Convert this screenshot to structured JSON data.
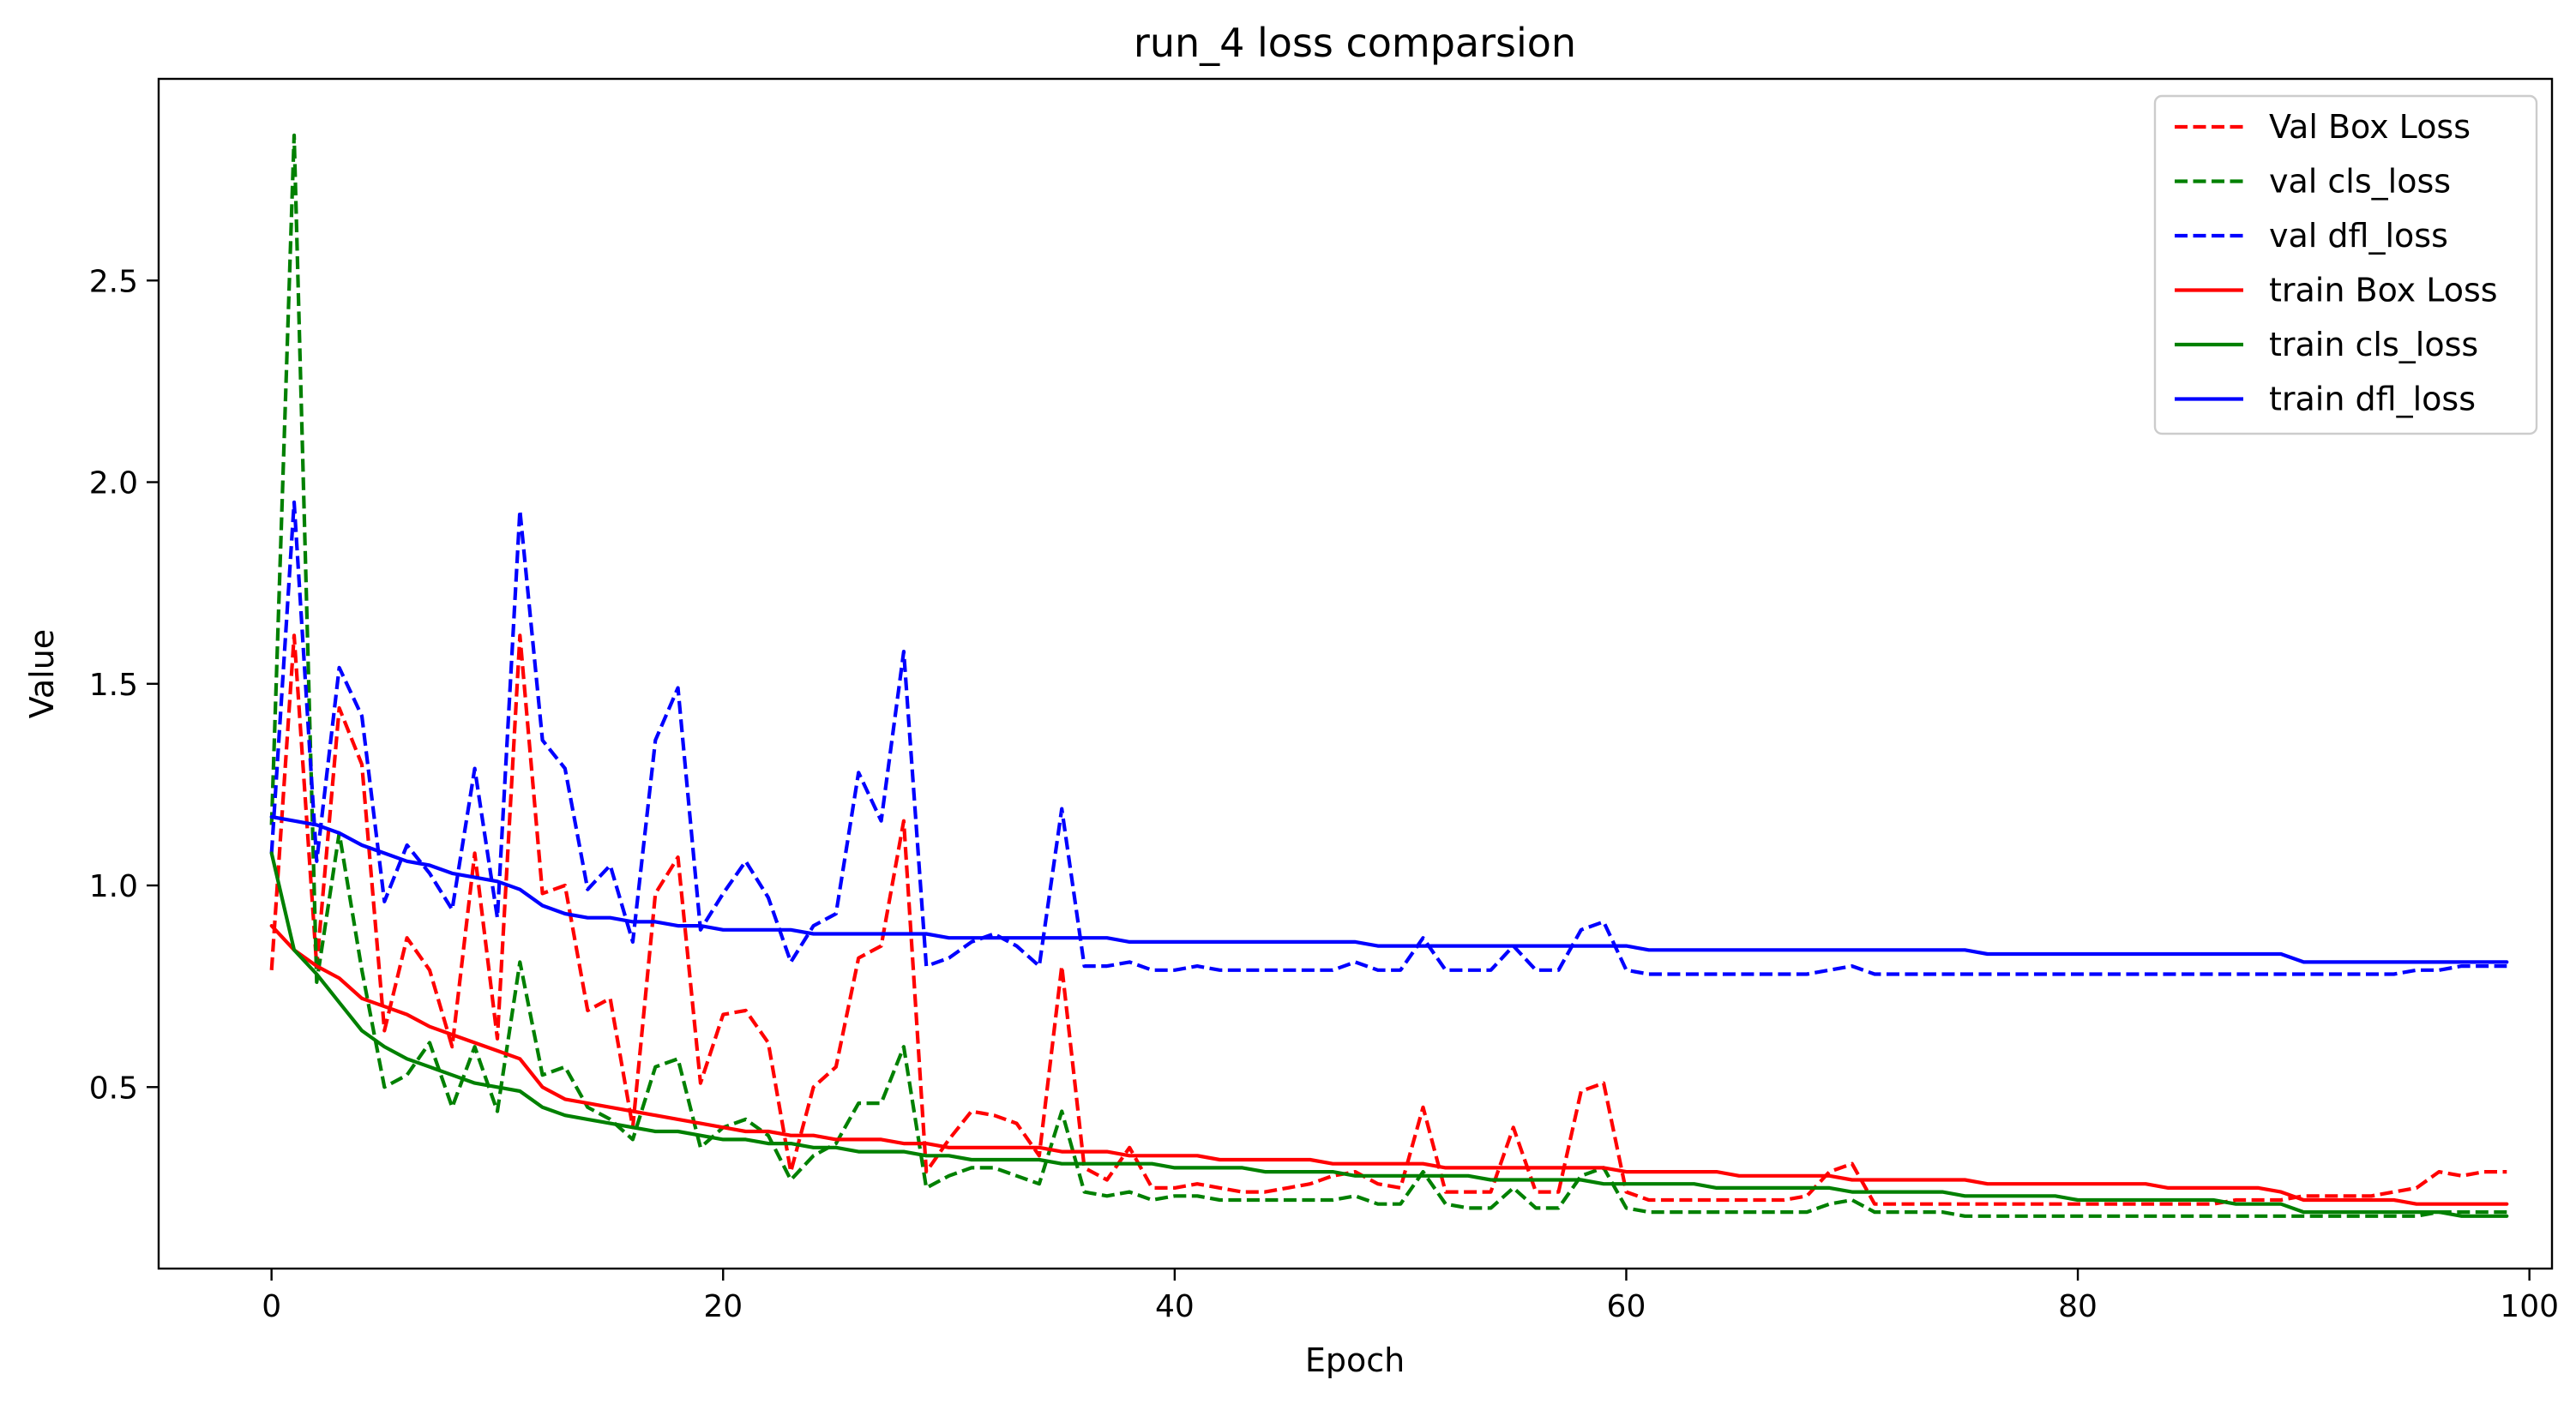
{
  "chart_data": {
    "type": "line",
    "title": "run_4 loss comparsion",
    "xlabel": "Epoch",
    "ylabel": "Value",
    "xlim": [
      -5,
      101
    ],
    "ylim": [
      0.05,
      3.0
    ],
    "xticks": [
      0,
      20,
      40,
      60,
      80,
      100
    ],
    "yticks": [
      0.5,
      1.0,
      1.5,
      2.0,
      2.5
    ],
    "xtick_labels": [
      "0",
      "20",
      "40",
      "60",
      "80",
      "100"
    ],
    "ytick_labels": [
      "0.5",
      "1.0",
      "1.5",
      "2.0",
      "2.5"
    ],
    "grid": false,
    "legend_position": "top-right",
    "x": [
      0,
      1,
      2,
      3,
      4,
      5,
      6,
      7,
      8,
      9,
      10,
      11,
      12,
      13,
      14,
      15,
      16,
      17,
      18,
      19,
      20,
      21,
      22,
      23,
      24,
      25,
      26,
      27,
      28,
      29,
      30,
      31,
      32,
      33,
      34,
      35,
      36,
      37,
      38,
      39,
      40,
      41,
      42,
      43,
      44,
      45,
      46,
      47,
      48,
      49,
      50,
      51,
      52,
      53,
      54,
      55,
      56,
      57,
      58,
      59,
      60,
      61,
      62,
      63,
      64,
      65,
      66,
      67,
      68,
      69,
      70,
      71,
      72,
      73,
      74,
      75,
      76,
      77,
      78,
      79,
      80,
      81,
      82,
      83,
      84,
      85,
      86,
      87,
      88,
      89,
      90,
      91,
      92,
      93,
      94,
      95,
      96,
      97,
      98,
      99
    ],
    "series": [
      {
        "name": "Val Box Loss",
        "color": "#ff0000",
        "style": "dashed",
        "values": [
          0.79,
          1.62,
          0.8,
          1.44,
          1.3,
          0.64,
          0.87,
          0.79,
          0.6,
          1.08,
          0.62,
          1.62,
          0.98,
          1.0,
          0.69,
          0.72,
          0.4,
          0.98,
          1.07,
          0.51,
          0.68,
          0.69,
          0.61,
          0.29,
          0.5,
          0.55,
          0.82,
          0.85,
          1.16,
          0.29,
          0.37,
          0.44,
          0.43,
          0.41,
          0.33,
          0.8,
          0.3,
          0.27,
          0.35,
          0.25,
          0.25,
          0.26,
          0.25,
          0.24,
          0.24,
          0.25,
          0.26,
          0.28,
          0.29,
          0.26,
          0.25,
          0.45,
          0.24,
          0.24,
          0.24,
          0.4,
          0.24,
          0.24,
          0.49,
          0.51,
          0.24,
          0.22,
          0.22,
          0.22,
          0.22,
          0.22,
          0.22,
          0.22,
          0.23,
          0.29,
          0.31,
          0.21,
          0.21,
          0.21,
          0.21,
          0.21,
          0.21,
          0.21,
          0.21,
          0.21,
          0.21,
          0.21,
          0.21,
          0.21,
          0.21,
          0.21,
          0.21,
          0.22,
          0.22,
          0.22,
          0.23,
          0.23,
          0.23,
          0.23,
          0.24,
          0.25,
          0.29,
          0.28,
          0.29,
          0.29
        ]
      },
      {
        "name": "val cls_loss",
        "color": "#008000",
        "style": "dashed",
        "values": [
          1.15,
          2.86,
          0.76,
          1.13,
          0.79,
          0.5,
          0.53,
          0.61,
          0.45,
          0.6,
          0.44,
          0.81,
          0.53,
          0.55,
          0.45,
          0.42,
          0.37,
          0.55,
          0.57,
          0.35,
          0.4,
          0.42,
          0.38,
          0.27,
          0.33,
          0.36,
          0.46,
          0.46,
          0.6,
          0.25,
          0.28,
          0.3,
          0.3,
          0.28,
          0.26,
          0.44,
          0.24,
          0.23,
          0.24,
          0.22,
          0.23,
          0.23,
          0.22,
          0.22,
          0.22,
          0.22,
          0.22,
          0.22,
          0.23,
          0.21,
          0.21,
          0.29,
          0.21,
          0.2,
          0.2,
          0.25,
          0.2,
          0.2,
          0.28,
          0.3,
          0.2,
          0.19,
          0.19,
          0.19,
          0.19,
          0.19,
          0.19,
          0.19,
          0.19,
          0.21,
          0.22,
          0.19,
          0.19,
          0.19,
          0.19,
          0.18,
          0.18,
          0.18,
          0.18,
          0.18,
          0.18,
          0.18,
          0.18,
          0.18,
          0.18,
          0.18,
          0.18,
          0.18,
          0.18,
          0.18,
          0.18,
          0.18,
          0.18,
          0.18,
          0.18,
          0.18,
          0.19,
          0.19,
          0.19,
          0.19
        ]
      },
      {
        "name": "val dfl_loss",
        "color": "#0000ff",
        "style": "dashed",
        "values": [
          1.08,
          1.95,
          1.06,
          1.54,
          1.42,
          0.96,
          1.1,
          1.03,
          0.94,
          1.29,
          0.92,
          1.93,
          1.36,
          1.29,
          0.99,
          1.05,
          0.86,
          1.36,
          1.49,
          0.89,
          0.98,
          1.06,
          0.97,
          0.81,
          0.9,
          0.93,
          1.28,
          1.16,
          1.58,
          0.8,
          0.82,
          0.86,
          0.88,
          0.85,
          0.8,
          1.19,
          0.8,
          0.8,
          0.81,
          0.79,
          0.79,
          0.8,
          0.79,
          0.79,
          0.79,
          0.79,
          0.79,
          0.79,
          0.81,
          0.79,
          0.79,
          0.87,
          0.79,
          0.79,
          0.79,
          0.85,
          0.79,
          0.79,
          0.89,
          0.91,
          0.79,
          0.78,
          0.78,
          0.78,
          0.78,
          0.78,
          0.78,
          0.78,
          0.78,
          0.79,
          0.8,
          0.78,
          0.78,
          0.78,
          0.78,
          0.78,
          0.78,
          0.78,
          0.78,
          0.78,
          0.78,
          0.78,
          0.78,
          0.78,
          0.78,
          0.78,
          0.78,
          0.78,
          0.78,
          0.78,
          0.78,
          0.78,
          0.78,
          0.78,
          0.78,
          0.79,
          0.79,
          0.8,
          0.8,
          0.8
        ]
      },
      {
        "name": "train Box Loss",
        "color": "#ff0000",
        "style": "solid",
        "values": [
          0.9,
          0.84,
          0.8,
          0.77,
          0.72,
          0.7,
          0.68,
          0.65,
          0.63,
          0.61,
          0.59,
          0.57,
          0.5,
          0.47,
          0.46,
          0.45,
          0.44,
          0.43,
          0.42,
          0.41,
          0.4,
          0.39,
          0.39,
          0.38,
          0.38,
          0.37,
          0.37,
          0.37,
          0.36,
          0.36,
          0.35,
          0.35,
          0.35,
          0.35,
          0.35,
          0.34,
          0.34,
          0.34,
          0.33,
          0.33,
          0.33,
          0.33,
          0.32,
          0.32,
          0.32,
          0.32,
          0.32,
          0.31,
          0.31,
          0.31,
          0.31,
          0.31,
          0.3,
          0.3,
          0.3,
          0.3,
          0.3,
          0.3,
          0.3,
          0.3,
          0.29,
          0.29,
          0.29,
          0.29,
          0.29,
          0.28,
          0.28,
          0.28,
          0.28,
          0.28,
          0.27,
          0.27,
          0.27,
          0.27,
          0.27,
          0.27,
          0.26,
          0.26,
          0.26,
          0.26,
          0.26,
          0.26,
          0.26,
          0.26,
          0.25,
          0.25,
          0.25,
          0.25,
          0.25,
          0.24,
          0.22,
          0.22,
          0.22,
          0.22,
          0.22,
          0.21,
          0.21,
          0.21,
          0.21,
          0.21
        ]
      },
      {
        "name": "train cls_loss",
        "color": "#008000",
        "style": "solid",
        "values": [
          1.08,
          0.84,
          0.78,
          0.71,
          0.64,
          0.6,
          0.57,
          0.55,
          0.53,
          0.51,
          0.5,
          0.49,
          0.45,
          0.43,
          0.42,
          0.41,
          0.4,
          0.39,
          0.39,
          0.38,
          0.37,
          0.37,
          0.36,
          0.36,
          0.35,
          0.35,
          0.34,
          0.34,
          0.34,
          0.33,
          0.33,
          0.32,
          0.32,
          0.32,
          0.32,
          0.31,
          0.31,
          0.31,
          0.31,
          0.31,
          0.3,
          0.3,
          0.3,
          0.3,
          0.29,
          0.29,
          0.29,
          0.29,
          0.28,
          0.28,
          0.28,
          0.28,
          0.28,
          0.28,
          0.27,
          0.27,
          0.27,
          0.27,
          0.27,
          0.26,
          0.26,
          0.26,
          0.26,
          0.26,
          0.25,
          0.25,
          0.25,
          0.25,
          0.25,
          0.25,
          0.24,
          0.24,
          0.24,
          0.24,
          0.24,
          0.23,
          0.23,
          0.23,
          0.23,
          0.23,
          0.22,
          0.22,
          0.22,
          0.22,
          0.22,
          0.22,
          0.22,
          0.21,
          0.21,
          0.21,
          0.19,
          0.19,
          0.19,
          0.19,
          0.19,
          0.19,
          0.19,
          0.18,
          0.18,
          0.18
        ]
      },
      {
        "name": "train dfl_loss",
        "color": "#0000ff",
        "style": "solid",
        "values": [
          1.17,
          1.16,
          1.15,
          1.13,
          1.1,
          1.08,
          1.06,
          1.05,
          1.03,
          1.02,
          1.01,
          0.99,
          0.95,
          0.93,
          0.92,
          0.92,
          0.91,
          0.91,
          0.9,
          0.9,
          0.89,
          0.89,
          0.89,
          0.89,
          0.88,
          0.88,
          0.88,
          0.88,
          0.88,
          0.88,
          0.87,
          0.87,
          0.87,
          0.87,
          0.87,
          0.87,
          0.87,
          0.87,
          0.86,
          0.86,
          0.86,
          0.86,
          0.86,
          0.86,
          0.86,
          0.86,
          0.86,
          0.86,
          0.86,
          0.85,
          0.85,
          0.85,
          0.85,
          0.85,
          0.85,
          0.85,
          0.85,
          0.85,
          0.85,
          0.85,
          0.85,
          0.84,
          0.84,
          0.84,
          0.84,
          0.84,
          0.84,
          0.84,
          0.84,
          0.84,
          0.84,
          0.84,
          0.84,
          0.84,
          0.84,
          0.84,
          0.83,
          0.83,
          0.83,
          0.83,
          0.83,
          0.83,
          0.83,
          0.83,
          0.83,
          0.83,
          0.83,
          0.83,
          0.83,
          0.83,
          0.81,
          0.81,
          0.81,
          0.81,
          0.81,
          0.81,
          0.81,
          0.81,
          0.81,
          0.81
        ]
      }
    ]
  }
}
